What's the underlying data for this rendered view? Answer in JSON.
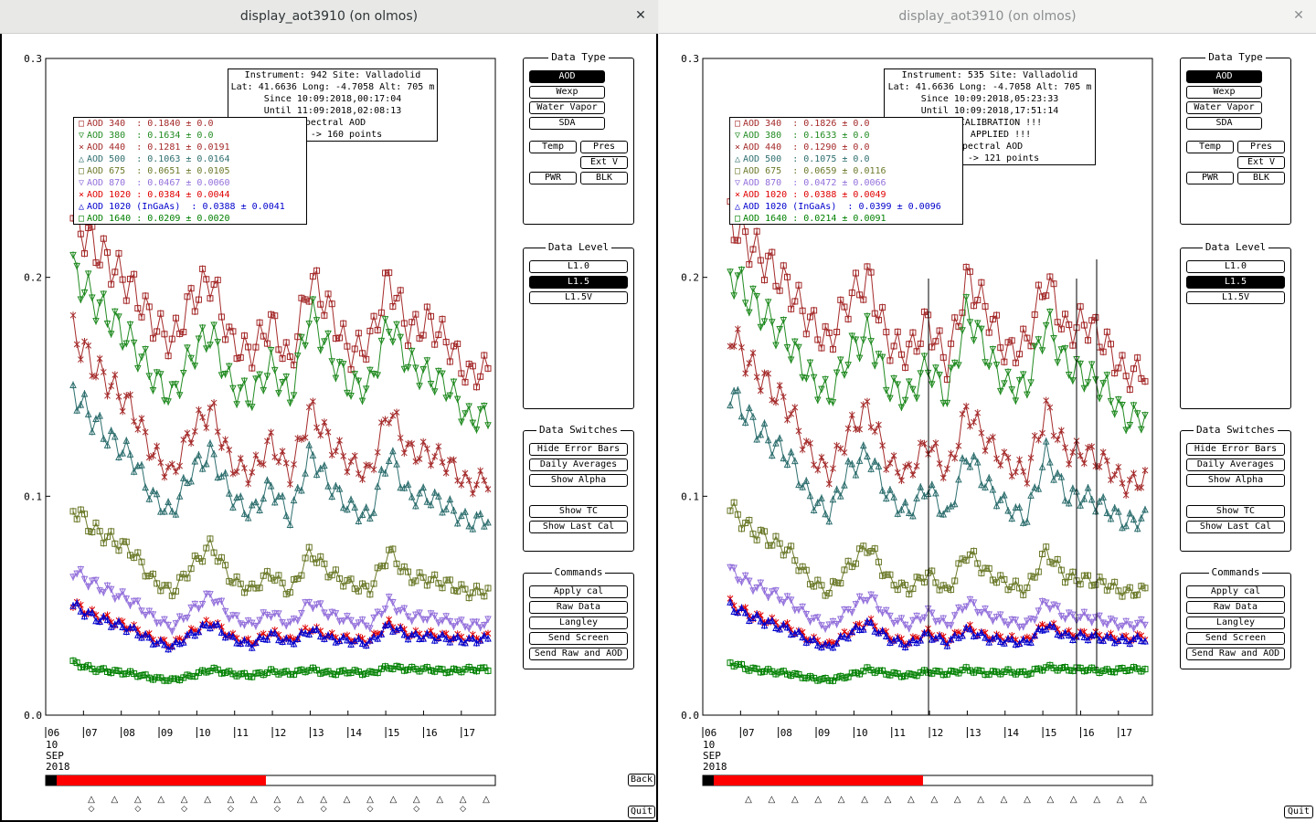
{
  "windows": [
    {
      "title": "display_aot3910 (on olmos)",
      "info": [
        "Instrument: 942 Site: Valladolid",
        "Lat: 41.6636 Long: -4.7058 Alt: 705 m",
        "Since 10:09:2018,00:17:04",
        "Until 11:09:2018,02:08:13",
        "Spectral AOD",
        "L1.5 -> 160 points"
      ],
      "legend": [
        {
          "label": "AOD 340",
          "value": "  : 0.1840 ± 0.0",
          "symbol": "square",
          "color": "#a52a2a"
        },
        {
          "label": "AOD 380",
          "value": "  : 0.1634 ± 0.0",
          "symbol": "tri-down",
          "color": "#228b22"
        },
        {
          "label": "AOD 440",
          "value": "  : 0.1281 ± 0.0191",
          "symbol": "x",
          "color": "#a52a2a"
        },
        {
          "label": "AOD 500",
          "value": "  : 0.1063 ± 0.0164",
          "symbol": "tri-up",
          "color": "#2f6f6f"
        },
        {
          "label": "AOD 675",
          "value": "  : 0.0651 ± 0.0105",
          "symbol": "square",
          "color": "#6b7a2a"
        },
        {
          "label": "AOD 870",
          "value": "  : 0.0467 ± 0.0060",
          "symbol": "tri-down",
          "color": "#9370db"
        },
        {
          "label": "AOD 1020",
          "value": " : 0.0384 ± 0.0044",
          "symbol": "x",
          "color": "#e00000"
        },
        {
          "label": "AOD 1020 (InGaAs)",
          "value": "  : 0.0388 ± 0.0041",
          "symbol": "tri-up",
          "color": "#0000cd"
        },
        {
          "label": "AOD 1640",
          "value": " : 0.0209 ± 0.0020",
          "symbol": "square",
          "color": "#008000"
        }
      ],
      "progress_fraction": 0.53,
      "show_back": true
    },
    {
      "title": "display_aot3910 (on olmos)",
      "info": [
        "Instrument: 535 Site: Valladolid",
        "Lat: 41.6636 Long: -4.7058 Alt: 705 m",
        "Since 10:09:2018,05:23:33",
        "Until 10:09:2018,17:51:14",
        "!!! CALIBRATION !!!",
        "!!!   APPLIED   !!!",
        "Spectral AOD",
        "L1.5 -> 121 points"
      ],
      "legend": [
        {
          "label": "AOD 340",
          "value": "  : 0.1826 ± 0.0",
          "symbol": "square",
          "color": "#a52a2a"
        },
        {
          "label": "AOD 380",
          "value": "  : 0.1633 ± 0.0",
          "symbol": "tri-down",
          "color": "#228b22"
        },
        {
          "label": "AOD 440",
          "value": "  : 0.1290 ± 0.0",
          "symbol": "x",
          "color": "#a52a2a"
        },
        {
          "label": "AOD 500",
          "value": "  : 0.1075 ± 0.0",
          "symbol": "tri-up",
          "color": "#2f6f6f"
        },
        {
          "label": "AOD 675",
          "value": "  : 0.0659 ± 0.0116",
          "symbol": "square",
          "color": "#6b7a2a"
        },
        {
          "label": "AOD 870",
          "value": "  : 0.0472 ± 0.0066",
          "symbol": "tri-down",
          "color": "#9370db"
        },
        {
          "label": "AOD 1020",
          "value": " : 0.0388 ± 0.0049",
          "symbol": "x",
          "color": "#e00000"
        },
        {
          "label": "AOD 1020 (InGaAs)",
          "value": "  : 0.0399 ± 0.0096",
          "symbol": "tri-up",
          "color": "#0000cd"
        },
        {
          "label": "AOD 1640",
          "value": " : 0.0214 ± 0.0091",
          "symbol": "square",
          "color": "#008000"
        }
      ],
      "progress_fraction": 0.53,
      "show_back": false
    }
  ],
  "axes": {
    "y_ticks": [
      "0.3",
      "0.2",
      "0.1",
      "0.0"
    ],
    "x_ticks": [
      "06",
      "07",
      "08",
      "09",
      "10",
      "11",
      "12",
      "13",
      "14",
      "15",
      "16",
      "17"
    ],
    "date_lines": [
      "10",
      "SEP",
      "2018"
    ]
  },
  "panels": {
    "data_type": {
      "title": "Data Type",
      "buttons": [
        "AOD",
        "Wexp",
        "Water Vapor",
        "SDA",
        "Temp",
        "Pres",
        "Ext V",
        "PWR",
        "BLK"
      ],
      "selected": "AOD"
    },
    "data_level": {
      "title": "Data Level",
      "buttons": [
        "L1.0",
        "L1.5",
        "L1.5V"
      ],
      "selected": "L1.5"
    },
    "data_switches": {
      "title": "Data Switches",
      "buttons": [
        "Hide Error Bars",
        "Daily Averages",
        "Show Alpha",
        "Show TC",
        "Show Last Cal"
      ]
    },
    "commands": {
      "title": "Commands",
      "buttons": [
        "Apply cal",
        "Raw Data",
        "Langley",
        "Send Screen",
        "Send Raw and AOD"
      ]
    }
  },
  "bottom_buttons": {
    "back": "Back",
    "quit": "Quit"
  },
  "chart_data": {
    "type": "scatter",
    "xlabel": "",
    "ylabel": "",
    "ylim": [
      0.0,
      0.3
    ],
    "x_tick_labels": [
      "06",
      "07",
      "08",
      "09",
      "10",
      "11",
      "12",
      "13",
      "14",
      "15",
      "16",
      "17"
    ],
    "series": [
      {
        "name": "AOD 340",
        "color": "#a52a2a",
        "values": [
          0.227,
          0.215,
          0.205,
          0.195,
          0.18,
          0.17,
          0.19,
          0.2,
          0.17,
          0.165,
          0.18,
          0.16,
          0.2,
          0.185,
          0.165,
          0.17,
          0.2,
          0.175,
          0.18,
          0.17,
          0.155,
          0.158
        ]
      },
      {
        "name": "AOD 380",
        "color": "#228b22",
        "values": [
          0.203,
          0.19,
          0.18,
          0.17,
          0.155,
          0.145,
          0.165,
          0.175,
          0.15,
          0.145,
          0.16,
          0.145,
          0.185,
          0.165,
          0.15,
          0.15,
          0.18,
          0.16,
          0.155,
          0.15,
          0.135,
          0.137
        ]
      },
      {
        "name": "AOD 440",
        "color": "#a52a2a",
        "values": [
          0.175,
          0.16,
          0.15,
          0.14,
          0.12,
          0.11,
          0.13,
          0.14,
          0.115,
          0.11,
          0.125,
          0.11,
          0.14,
          0.125,
          0.115,
          0.11,
          0.14,
          0.12,
          0.12,
          0.115,
          0.105,
          0.108
        ]
      },
      {
        "name": "AOD 500",
        "color": "#2f6f6f",
        "values": [
          0.148,
          0.135,
          0.125,
          0.118,
          0.1,
          0.092,
          0.112,
          0.12,
          0.1,
          0.092,
          0.105,
          0.09,
          0.12,
          0.105,
          0.095,
          0.09,
          0.12,
          0.1,
          0.1,
          0.095,
          0.088,
          0.09
        ]
      },
      {
        "name": "AOD 675",
        "color": "#6b7a2a",
        "values": [
          0.095,
          0.085,
          0.08,
          0.075,
          0.062,
          0.056,
          0.068,
          0.078,
          0.062,
          0.057,
          0.065,
          0.056,
          0.075,
          0.065,
          0.06,
          0.057,
          0.075,
          0.063,
          0.062,
          0.06,
          0.056,
          0.057
        ]
      },
      {
        "name": "AOD 870",
        "color": "#9370db",
        "values": [
          0.066,
          0.06,
          0.056,
          0.052,
          0.045,
          0.04,
          0.048,
          0.055,
          0.045,
          0.041,
          0.047,
          0.041,
          0.052,
          0.046,
          0.043,
          0.041,
          0.052,
          0.045,
          0.045,
          0.043,
          0.041,
          0.042
        ]
      },
      {
        "name": "AOD 1020",
        "color": "#e00000",
        "values": [
          0.051,
          0.046,
          0.043,
          0.04,
          0.035,
          0.032,
          0.038,
          0.043,
          0.036,
          0.033,
          0.038,
          0.034,
          0.04,
          0.036,
          0.035,
          0.034,
          0.042,
          0.037,
          0.037,
          0.036,
          0.035,
          0.036
        ]
      },
      {
        "name": "AOD 1020 (InGaAs)",
        "color": "#0000cd",
        "values": [
          0.05,
          0.045,
          0.042,
          0.039,
          0.034,
          0.031,
          0.037,
          0.042,
          0.035,
          0.032,
          0.037,
          0.033,
          0.039,
          0.035,
          0.034,
          0.033,
          0.041,
          0.036,
          0.036,
          0.035,
          0.034,
          0.035
        ]
      },
      {
        "name": "AOD 1640",
        "color": "#008000",
        "values": [
          0.024,
          0.021,
          0.02,
          0.019,
          0.017,
          0.016,
          0.018,
          0.021,
          0.019,
          0.018,
          0.02,
          0.019,
          0.021,
          0.019,
          0.02,
          0.019,
          0.022,
          0.021,
          0.021,
          0.02,
          0.021,
          0.021
        ]
      }
    ]
  }
}
